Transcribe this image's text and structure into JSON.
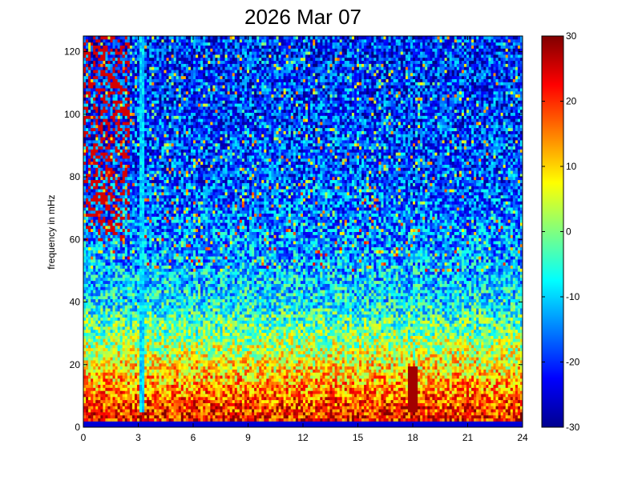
{
  "chart_data": {
    "type": "heatmap",
    "title": "2026 Mar 07",
    "xlabel": "",
    "ylabel": "frequency in mHz",
    "xlim": [
      0,
      24
    ],
    "ylim": [
      0,
      125
    ],
    "x_ticks": [
      "0",
      "3",
      "6",
      "9",
      "12",
      "15",
      "18",
      "21",
      "24"
    ],
    "y_ticks": [
      "0",
      "20",
      "40",
      "60",
      "80",
      "100",
      "120"
    ],
    "colorbar": {
      "range": [
        -30,
        30
      ],
      "ticks": [
        "30",
        "20",
        "10",
        "0",
        "-10",
        "-20",
        "-30"
      ],
      "colormap": "jet"
    },
    "grid": false,
    "value_profile": [
      {
        "frequency": 2,
        "value": 22
      },
      {
        "frequency": 8,
        "value": 18
      },
      {
        "frequency": 20,
        "value": 8
      },
      {
        "frequency": 40,
        "value": -8
      },
      {
        "frequency": 60,
        "value": -14
      },
      {
        "frequency": 80,
        "value": -18
      },
      {
        "frequency": 100,
        "value": -19
      },
      {
        "frequency": 120,
        "value": -20
      }
    ],
    "features": [
      {
        "type": "vertical-line",
        "x": 3.2,
        "value": -10
      },
      {
        "type": "burst",
        "x": 18.0,
        "frequency_range": [
          5,
          20
        ],
        "value": 28
      },
      {
        "type": "high-frequency-patch",
        "x_range": [
          0,
          2.5
        ],
        "frequency_range": [
          60,
          125
        ],
        "value": 25
      }
    ]
  }
}
